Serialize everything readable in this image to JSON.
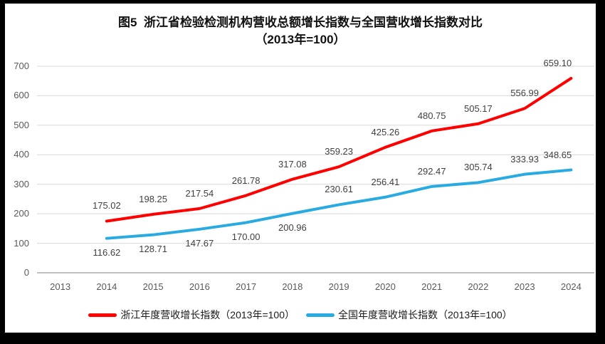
{
  "title": {
    "line1": "图5  浙江省检验检测机构营收总额增长指数与全国营收增长指数对比",
    "line2": "（2013年=100）"
  },
  "chart_data": {
    "type": "line",
    "categories": [
      "2013",
      "2014",
      "2015",
      "2016",
      "2017",
      "2018",
      "2019",
      "2020",
      "2021",
      "2022",
      "2023",
      "2024"
    ],
    "ylim": [
      0,
      700
    ],
    "yticks": [
      0,
      100,
      200,
      300,
      400,
      500,
      600,
      700
    ],
    "grid": true,
    "legend_position": "bottom",
    "base_note": "2013年=100",
    "series": [
      {
        "name": "浙江年度营收增长指数（2013年=100）",
        "color": "#FE0000",
        "start_category": "2014",
        "values": [
          175.02,
          198.25,
          217.54,
          261.78,
          317.08,
          359.23,
          425.26,
          480.75,
          505.17,
          556.99,
          659.1
        ],
        "label_side": [
          "above",
          "above",
          "above",
          "above",
          "above",
          "above",
          "above",
          "above",
          "above",
          "above",
          "above"
        ]
      },
      {
        "name": "全国年度营收增长指数（2013年=100）",
        "color": "#29ABE2",
        "start_category": "2014",
        "values": [
          116.62,
          128.71,
          147.67,
          170.0,
          200.96,
          230.61,
          256.41,
          292.47,
          305.74,
          333.93,
          348.65
        ],
        "label_side": [
          "below",
          "below",
          "below",
          "below",
          "below",
          "above",
          "above",
          "above",
          "above",
          "above",
          "above"
        ]
      }
    ],
    "colors": {
      "gridline": "#D9D9D9",
      "axis_line": "#C0C0C0",
      "tick_text": "#595959",
      "data_label_text": "#404040"
    }
  }
}
